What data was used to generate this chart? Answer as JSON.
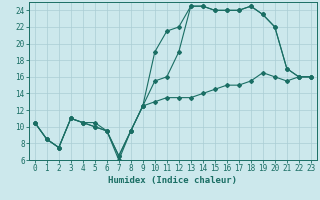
{
  "xlabel": "Humidex (Indice chaleur)",
  "bg_color": "#cce8ec",
  "grid_color": "#aacdd4",
  "line_color": "#1a6e64",
  "xlim": [
    -0.5,
    23.5
  ],
  "ylim": [
    6,
    25
  ],
  "xticks": [
    0,
    1,
    2,
    3,
    4,
    5,
    6,
    7,
    8,
    9,
    10,
    11,
    12,
    13,
    14,
    15,
    16,
    17,
    18,
    19,
    20,
    21,
    22,
    23
  ],
  "yticks": [
    6,
    8,
    10,
    12,
    14,
    16,
    18,
    20,
    22,
    24
  ],
  "line1_x": [
    0,
    1,
    2,
    3,
    4,
    5,
    6,
    7,
    8,
    9,
    10,
    11,
    12,
    13,
    14,
    15,
    16,
    17,
    18,
    19,
    20,
    21,
    22,
    23
  ],
  "line1_y": [
    10.5,
    8.5,
    7.5,
    11.0,
    10.5,
    10.5,
    9.5,
    6.0,
    9.5,
    12.5,
    19.0,
    21.5,
    22.0,
    24.5,
    24.5,
    24.0,
    24.0,
    24.0,
    24.5,
    23.5,
    22.0,
    17.0,
    16.0,
    16.0
  ],
  "line2_x": [
    0,
    1,
    2,
    3,
    4,
    5,
    6,
    7,
    8,
    9,
    10,
    11,
    12,
    13,
    14,
    15,
    16,
    17,
    18,
    19,
    20,
    21,
    22,
    23
  ],
  "line2_y": [
    10.5,
    8.5,
    7.5,
    11.0,
    10.5,
    10.0,
    9.5,
    6.5,
    9.5,
    12.5,
    15.5,
    16.0,
    19.0,
    24.5,
    24.5,
    24.0,
    24.0,
    24.0,
    24.5,
    23.5,
    22.0,
    17.0,
    16.0,
    16.0
  ],
  "line3_x": [
    0,
    1,
    2,
    3,
    4,
    5,
    6,
    7,
    8,
    9,
    10,
    11,
    12,
    13,
    14,
    15,
    16,
    17,
    18,
    19,
    20,
    21,
    22,
    23
  ],
  "line3_y": [
    10.5,
    8.5,
    7.5,
    11.0,
    10.5,
    10.0,
    9.5,
    6.5,
    9.5,
    12.5,
    13.0,
    13.5,
    13.5,
    13.5,
    14.0,
    14.5,
    15.0,
    15.0,
    15.5,
    16.5,
    16.0,
    15.5,
    16.0,
    16.0
  ],
  "tick_fontsize": 5.5,
  "xlabel_fontsize": 6.5,
  "marker_size": 2.0,
  "line_width": 0.8
}
